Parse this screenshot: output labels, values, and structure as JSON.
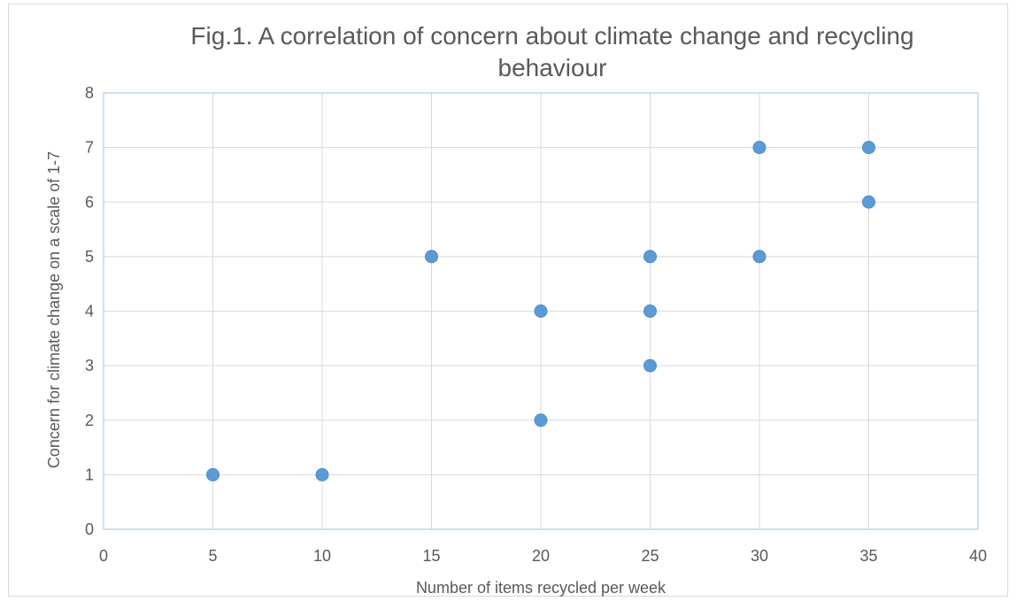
{
  "chart_data": {
    "type": "scatter",
    "title_lines": [
      "Fig.1. A correlation of concern about climate change and recycling",
      "behaviour"
    ],
    "xlabel": "Number of items recycled per week",
    "ylabel": "Concern for climate change on a scale of 1-7",
    "xlim": [
      0,
      40
    ],
    "ylim": [
      0,
      8
    ],
    "x_ticks": [
      0,
      5,
      10,
      15,
      20,
      25,
      30,
      35,
      40
    ],
    "y_ticks": [
      0,
      1,
      2,
      3,
      4,
      5,
      6,
      7,
      8
    ],
    "grid": true,
    "legend": "none",
    "marker_color": "#5b9bd5",
    "points": [
      {
        "x": 5,
        "y": 1
      },
      {
        "x": 10,
        "y": 1
      },
      {
        "x": 15,
        "y": 5
      },
      {
        "x": 20,
        "y": 4
      },
      {
        "x": 20,
        "y": 2
      },
      {
        "x": 25,
        "y": 5
      },
      {
        "x": 25,
        "y": 4
      },
      {
        "x": 25,
        "y": 3
      },
      {
        "x": 30,
        "y": 7
      },
      {
        "x": 30,
        "y": 5
      },
      {
        "x": 35,
        "y": 7
      },
      {
        "x": 35,
        "y": 6
      }
    ]
  }
}
